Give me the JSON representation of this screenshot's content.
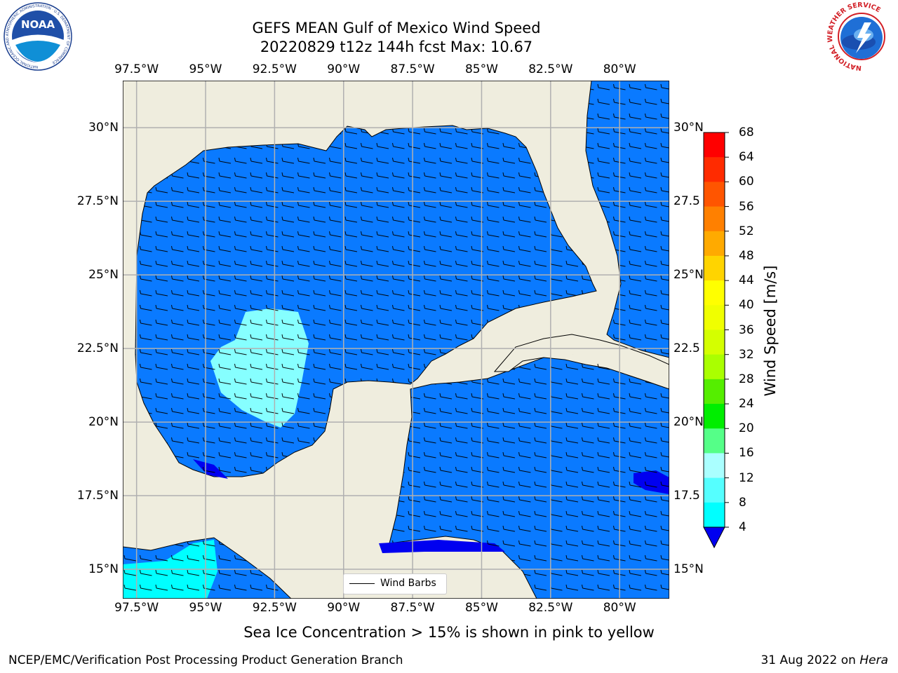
{
  "title": {
    "line1": "GEFS MEAN Gulf of Mexico Wind Speed",
    "line2": "20220829 t12z 144h fcst   Max: 10.67"
  },
  "map": {
    "lon_labels": [
      "97.5°W",
      "95°W",
      "92.5°W",
      "90°W",
      "87.5°W",
      "85°W",
      "82.5°W",
      "80°W"
    ],
    "lat_labels_left": [
      "30°N",
      "27.5°N",
      "25°N",
      "22.5°N",
      "20°N",
      "17.5°N",
      "15°N"
    ],
    "lat_labels_right": [
      "30°N",
      "27.5",
      "25°N",
      "22.5",
      "20°N",
      "17.5",
      "15°N"
    ],
    "lon_range": [
      -98,
      -78.2
    ],
    "lat_range": [
      14,
      31.6
    ],
    "legend_label": "Wind Barbs",
    "colors": {
      "land": "#efedde",
      "water_4_8": "#0a7aff",
      "water_8_12": "#00ffff",
      "water_12_16": "#86ffff",
      "water_lt4": "#0000f0",
      "grid": "#b0b0b0"
    }
  },
  "colorbar": {
    "title": "Wind Speed [m/s]",
    "ticks": [
      "68",
      "64",
      "60",
      "56",
      "52",
      "48",
      "44",
      "40",
      "36",
      "32",
      "28",
      "24",
      "20",
      "16",
      "12",
      "8",
      "4"
    ],
    "colors_top_to_bottom": [
      "#ff0000",
      "#ff2b00",
      "#ff5500",
      "#ff8000",
      "#ffaa00",
      "#ffd400",
      "#ffff00",
      "#f0ff00",
      "#d4ff00",
      "#aaff00",
      "#55ee00",
      "#00ee00",
      "#55ff88",
      "#aaffff",
      "#55ffff",
      "#00ffff",
      "#0a7aff"
    ],
    "under_color": "#0000f0"
  },
  "caption": "Sea Ice Concentration > 15% is shown in pink to yellow",
  "footer": {
    "left": "NCEP/EMC/Verification Post Processing Product Generation Branch",
    "right_date": "31 Aug 2022 on",
    "right_machine": "Hera"
  },
  "logos": {
    "left_icon": "noaa-logo",
    "left_text": "NOAA",
    "left_ring_text": "NATIONAL OCEANIC AND ATMOSPHERIC ADMINISTRATION · U.S. DEPARTMENT OF COMMERCE",
    "right_icon": "nws-logo",
    "right_ring_text": "NATIONAL WEATHER SERVICE"
  }
}
